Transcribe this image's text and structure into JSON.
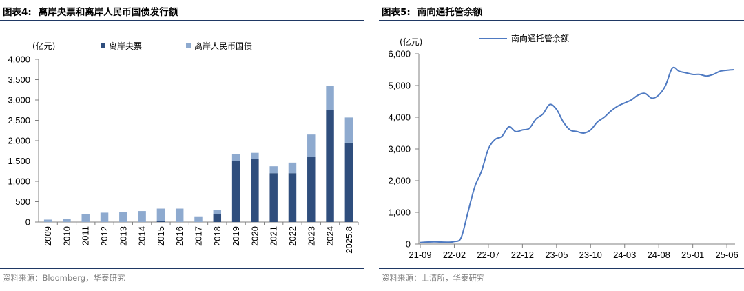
{
  "panels": {
    "left": {
      "title_prefix": "图表4:",
      "title": "离岸央票和离岸人民币国债发行额",
      "source": "资料来源：Bloomberg，华泰研究"
    },
    "right": {
      "title_prefix": "图表5:",
      "title": "南向通托管余额",
      "source": "资料来源：上清所，华泰研究"
    }
  },
  "colors": {
    "dark_bar": "#2f4e7d",
    "light_bar": "#8eaacf",
    "line": "#4f7ac2",
    "rule": "#1f3864",
    "axis": "#808080"
  },
  "chart_data": [
    {
      "type": "bar",
      "stacked": true,
      "unit_label": "(亿元)",
      "categories": [
        "2009",
        "2010",
        "2011",
        "2012",
        "2013",
        "2014",
        "2015",
        "2016",
        "2017",
        "2018",
        "2019",
        "2020",
        "2021",
        "2022",
        "2023",
        "2024",
        "2025.8"
      ],
      "series": [
        {
          "name": "离岸央票",
          "color": "#2f4e7d",
          "values": [
            0,
            0,
            0,
            0,
            0,
            0,
            30,
            0,
            0,
            200,
            1500,
            1550,
            1200,
            1200,
            1600,
            2750,
            1950
          ]
        },
        {
          "name": "离岸人民币国债",
          "color": "#8eaacf",
          "values": [
            60,
            80,
            200,
            230,
            240,
            270,
            300,
            330,
            140,
            100,
            170,
            150,
            170,
            260,
            550,
            600,
            620
          ]
        }
      ],
      "ylim": [
        0,
        4000
      ],
      "yticks": [
        0,
        500,
        1000,
        1500,
        2000,
        2500,
        3000,
        3500,
        4000
      ],
      "ytick_labels": [
        "0",
        "500",
        "1,000",
        "1,500",
        "2,000",
        "2,500",
        "3,000",
        "3,500",
        "4,000"
      ],
      "legend_position": "top",
      "grid": false
    },
    {
      "type": "line",
      "unit_label": "(亿元)",
      "series": [
        {
          "name": "南向通托管余额",
          "color": "#4f7ac2",
          "x": [
            "2021-09",
            "2021-11",
            "2022-01",
            "2022-02",
            "2022-03",
            "2022-04",
            "2022-05",
            "2022-06",
            "2022-07",
            "2022-08",
            "2022-09",
            "2022-10",
            "2022-11",
            "2022-12",
            "2023-01",
            "2023-02",
            "2023-03",
            "2023-04",
            "2023-05",
            "2023-06",
            "2023-07",
            "2023-08",
            "2023-09",
            "2023-10",
            "2023-11",
            "2023-12",
            "2024-01",
            "2024-02",
            "2024-03",
            "2024-04",
            "2024-05",
            "2024-06",
            "2024-07",
            "2024-08",
            "2024-09",
            "2024-10",
            "2024-11",
            "2024-12",
            "2025-01",
            "2025-02",
            "2025-03",
            "2025-04",
            "2025-05",
            "2025-06",
            "2025-07"
          ],
          "values": [
            50,
            70,
            60,
            80,
            200,
            1000,
            1800,
            2300,
            3000,
            3300,
            3400,
            3700,
            3550,
            3600,
            3650,
            3950,
            4100,
            4400,
            4250,
            3850,
            3600,
            3550,
            3500,
            3600,
            3850,
            4000,
            4200,
            4350,
            4450,
            4550,
            4700,
            4750,
            4600,
            4700,
            5000,
            5550,
            5450,
            5400,
            5350,
            5350,
            5300,
            5350,
            5450,
            5480,
            5500
          ]
        }
      ],
      "xticks": [
        "2021-09",
        "2022-02",
        "2022-07",
        "2022-12",
        "2023-05",
        "2023-10",
        "2024-03",
        "2024-08",
        "2025-01",
        "2025-06"
      ],
      "xtick_labels": [
        "21-09",
        "22-02",
        "22-07",
        "22-12",
        "23-05",
        "23-10",
        "24-03",
        "24-08",
        "25-01",
        "25-06"
      ],
      "ylim": [
        0,
        6000
      ],
      "yticks": [
        0,
        1000,
        2000,
        3000,
        4000,
        5000,
        6000
      ],
      "ytick_labels": [
        "0",
        "1,000",
        "2,000",
        "3,000",
        "4,000",
        "5,000",
        "6,000"
      ],
      "legend_position": "top",
      "grid": false
    }
  ]
}
